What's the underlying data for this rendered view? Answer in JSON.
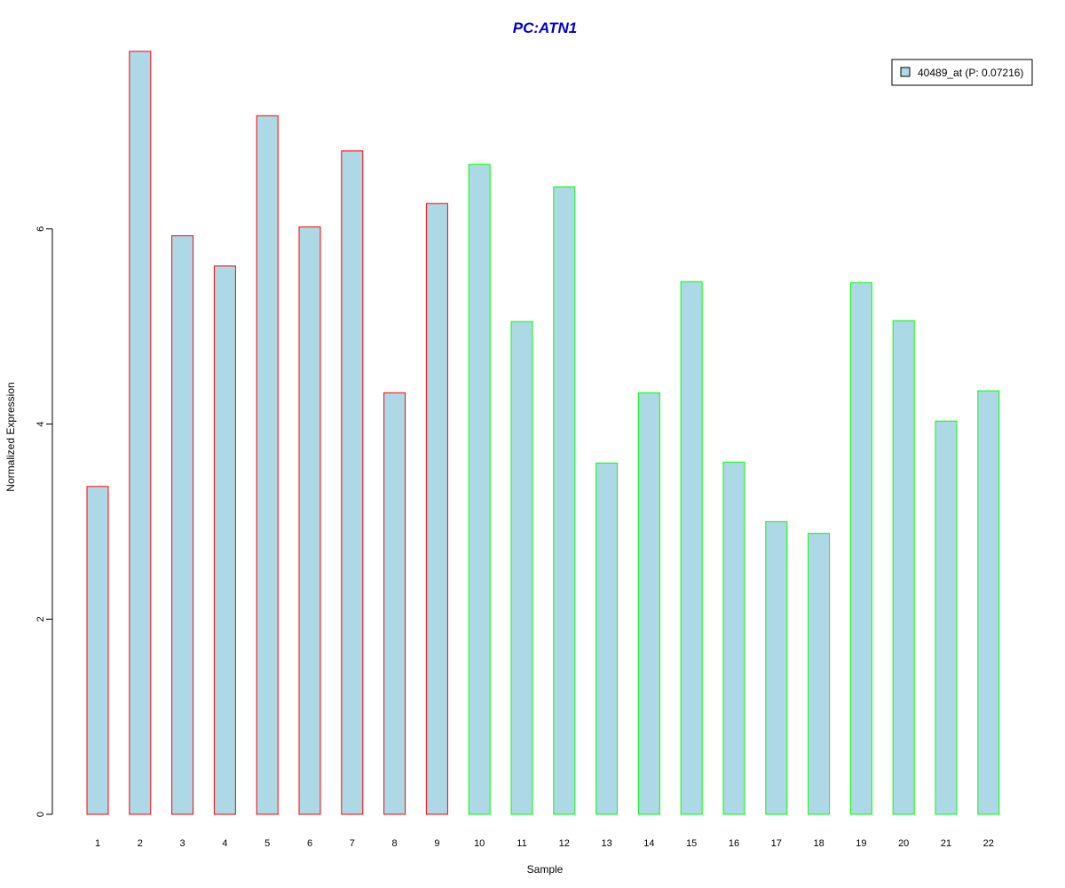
{
  "chart_data": {
    "type": "bar",
    "title": "PC:ATN1",
    "xlabel": "Sample",
    "ylabel": "Normalized Expression",
    "ylim": [
      0,
      7.9
    ],
    "yticks": [
      0,
      2,
      4,
      6
    ],
    "ytick_labels": [
      "0",
      "2",
      "4",
      "6"
    ],
    "categories": [
      "1",
      "2",
      "3",
      "4",
      "5",
      "6",
      "7",
      "8",
      "9",
      "10",
      "11",
      "12",
      "13",
      "14",
      "15",
      "16",
      "17",
      "18",
      "19",
      "20",
      "21",
      "22"
    ],
    "series": [
      {
        "name": "40489_at (P: 0.07216)",
        "values": [
          3.36,
          7.82,
          5.93,
          5.62,
          7.16,
          6.02,
          6.8,
          4.32,
          6.26,
          6.66,
          5.05,
          6.43,
          3.6,
          4.32,
          5.46,
          3.61,
          3.0,
          2.88,
          5.45,
          5.06,
          4.03,
          4.34
        ]
      }
    ],
    "bar_fill": "#add8e6",
    "title_color": "#0000cc",
    "group_border_colors": [
      "#ff0000",
      "#ff0000",
      "#ff0000",
      "#ff0000",
      "#ff0000",
      "#ff0000",
      "#ff0000",
      "#ff0000",
      "#ff0000",
      "#00ff00",
      "#00ff00",
      "#00ff00",
      "#00ff00",
      "#00ff00",
      "#00ff00",
      "#00ff00",
      "#00ff00",
      "#00ff00",
      "#00ff00",
      "#00ff00",
      "#00ff00",
      "#00ff00"
    ],
    "legend": {
      "placement": "top-right",
      "entries": [
        "40489_at (P: 0.07216)"
      ]
    },
    "grid": false
  }
}
